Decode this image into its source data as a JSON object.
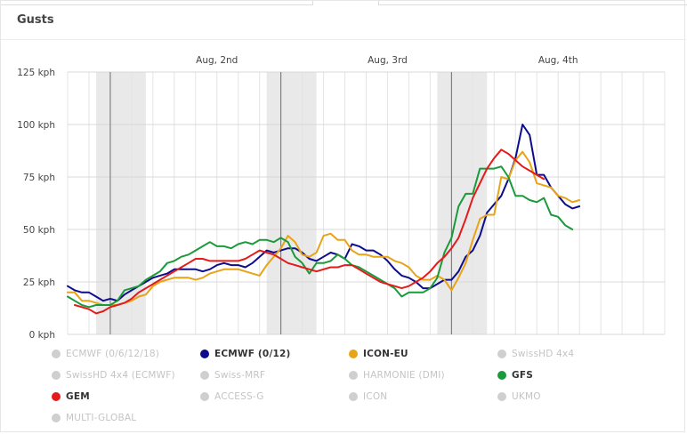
{
  "panel": {
    "title": "Gusts"
  },
  "chart_data": {
    "type": "line",
    "y_unit": "kph",
    "ylim": [
      0,
      125
    ],
    "yticks": [
      0,
      25,
      50,
      75,
      100,
      125
    ],
    "ytick_labels": [
      "0 kph",
      "25 kph",
      "50 kph",
      "75 kph",
      "100 kph",
      "125 kph"
    ],
    "x_range_hours": [
      0,
      84
    ],
    "date_labels": [
      {
        "label": "Aug, 2nd",
        "hour": 21
      },
      {
        "label": "Aug, 3rd",
        "hour": 45
      },
      {
        "label": "Aug, 4th",
        "hour": 69
      }
    ],
    "midnight_hours": [
      6,
      30,
      54
    ],
    "night_bands": [
      [
        4,
        11
      ],
      [
        28,
        35
      ],
      [
        52,
        59
      ]
    ],
    "grid": true,
    "series": [
      {
        "name": "ECMWF (0/12)",
        "color": "#0d0d8c",
        "points": [
          [
            0,
            23
          ],
          [
            1,
            21
          ],
          [
            2,
            20
          ],
          [
            3,
            20
          ],
          [
            4,
            18
          ],
          [
            5,
            16
          ],
          [
            6,
            17
          ],
          [
            7,
            16
          ],
          [
            8,
            19
          ],
          [
            9,
            21
          ],
          [
            10,
            23
          ],
          [
            11,
            25
          ],
          [
            12,
            27
          ],
          [
            13,
            28
          ],
          [
            14,
            29
          ],
          [
            15,
            31
          ],
          [
            16,
            31
          ],
          [
            17,
            31
          ],
          [
            18,
            31
          ],
          [
            19,
            30
          ],
          [
            20,
            31
          ],
          [
            21,
            33
          ],
          [
            22,
            34
          ],
          [
            23,
            33
          ],
          [
            24,
            33
          ],
          [
            25,
            32
          ],
          [
            26,
            34
          ],
          [
            27,
            37
          ],
          [
            28,
            40
          ],
          [
            29,
            39
          ],
          [
            30,
            40
          ],
          [
            31,
            41
          ],
          [
            32,
            41
          ],
          [
            33,
            39
          ],
          [
            34,
            36
          ],
          [
            35,
            35
          ],
          [
            36,
            37
          ],
          [
            37,
            39
          ],
          [
            38,
            38
          ],
          [
            39,
            36
          ],
          [
            40,
            43
          ],
          [
            41,
            42
          ],
          [
            42,
            40
          ],
          [
            43,
            40
          ],
          [
            44,
            38
          ],
          [
            45,
            35
          ],
          [
            46,
            31
          ],
          [
            47,
            28
          ],
          [
            48,
            27
          ],
          [
            49,
            25
          ],
          [
            50,
            22
          ],
          [
            51,
            22
          ],
          [
            52,
            24
          ],
          [
            53,
            26
          ],
          [
            54,
            26
          ],
          [
            55,
            30
          ],
          [
            56,
            37
          ],
          [
            57,
            40
          ],
          [
            58,
            47
          ],
          [
            59,
            58
          ],
          [
            60,
            62
          ],
          [
            61,
            66
          ],
          [
            62,
            74
          ],
          [
            63,
            84
          ],
          [
            64,
            100
          ],
          [
            65,
            95
          ],
          [
            66,
            76
          ],
          [
            67,
            76
          ],
          [
            68,
            70
          ],
          [
            69,
            66
          ],
          [
            70,
            62
          ],
          [
            71,
            60
          ],
          [
            72,
            61
          ]
        ]
      },
      {
        "name": "ICON-EU",
        "color": "#e8a317",
        "points": [
          [
            0,
            20
          ],
          [
            1,
            20
          ],
          [
            2,
            16
          ],
          [
            3,
            16
          ],
          [
            4,
            15
          ],
          [
            5,
            14
          ],
          [
            6,
            14
          ],
          [
            7,
            14
          ],
          [
            8,
            15
          ],
          [
            9,
            16
          ],
          [
            10,
            18
          ],
          [
            11,
            19
          ],
          [
            12,
            23
          ],
          [
            13,
            25
          ],
          [
            14,
            26
          ],
          [
            15,
            27
          ],
          [
            16,
            27
          ],
          [
            17,
            27
          ],
          [
            18,
            26
          ],
          [
            19,
            27
          ],
          [
            20,
            29
          ],
          [
            21,
            30
          ],
          [
            22,
            31
          ],
          [
            23,
            31
          ],
          [
            24,
            31
          ],
          [
            25,
            30
          ],
          [
            26,
            29
          ],
          [
            27,
            28
          ],
          [
            28,
            33
          ],
          [
            29,
            37
          ],
          [
            30,
            41
          ],
          [
            31,
            47
          ],
          [
            32,
            44
          ],
          [
            33,
            38
          ],
          [
            34,
            37
          ],
          [
            35,
            39
          ],
          [
            36,
            47
          ],
          [
            37,
            48
          ],
          [
            38,
            45
          ],
          [
            39,
            45
          ],
          [
            40,
            40
          ],
          [
            41,
            38
          ],
          [
            42,
            38
          ],
          [
            43,
            37
          ],
          [
            44,
            37
          ],
          [
            45,
            37
          ],
          [
            46,
            35
          ],
          [
            47,
            34
          ],
          [
            48,
            32
          ],
          [
            49,
            28
          ],
          [
            50,
            26
          ],
          [
            51,
            26
          ],
          [
            52,
            28
          ],
          [
            53,
            26
          ],
          [
            54,
            21
          ],
          [
            55,
            27
          ],
          [
            56,
            34
          ],
          [
            57,
            45
          ],
          [
            58,
            55
          ],
          [
            59,
            57
          ],
          [
            60,
            57
          ],
          [
            61,
            75
          ],
          [
            62,
            74
          ],
          [
            63,
            83
          ],
          [
            64,
            87
          ],
          [
            65,
            82
          ],
          [
            66,
            72
          ],
          [
            67,
            71
          ],
          [
            68,
            70
          ],
          [
            69,
            66
          ],
          [
            70,
            65
          ],
          [
            71,
            63
          ],
          [
            72,
            64
          ]
        ]
      },
      {
        "name": "GFS",
        "color": "#1a9a3a",
        "points": [
          [
            0,
            18
          ],
          [
            1,
            16
          ],
          [
            2,
            14
          ],
          [
            3,
            13
          ],
          [
            4,
            14
          ],
          [
            5,
            14
          ],
          [
            6,
            14
          ],
          [
            7,
            16
          ],
          [
            8,
            21
          ],
          [
            9,
            22
          ],
          [
            10,
            23
          ],
          [
            11,
            26
          ],
          [
            12,
            28
          ],
          [
            13,
            30
          ],
          [
            14,
            34
          ],
          [
            15,
            35
          ],
          [
            16,
            37
          ],
          [
            17,
            38
          ],
          [
            18,
            40
          ],
          [
            19,
            42
          ],
          [
            20,
            44
          ],
          [
            21,
            42
          ],
          [
            22,
            42
          ],
          [
            23,
            41
          ],
          [
            24,
            43
          ],
          [
            25,
            44
          ],
          [
            26,
            43
          ],
          [
            27,
            45
          ],
          [
            28,
            45
          ],
          [
            29,
            44
          ],
          [
            30,
            46
          ],
          [
            31,
            44
          ],
          [
            32,
            37
          ],
          [
            33,
            34
          ],
          [
            34,
            29
          ],
          [
            35,
            34
          ],
          [
            36,
            34
          ],
          [
            37,
            35
          ],
          [
            38,
            38
          ],
          [
            39,
            36
          ],
          [
            40,
            33
          ],
          [
            41,
            32
          ],
          [
            42,
            30
          ],
          [
            43,
            28
          ],
          [
            44,
            26
          ],
          [
            45,
            24
          ],
          [
            46,
            22
          ],
          [
            47,
            18
          ],
          [
            48,
            20
          ],
          [
            49,
            20
          ],
          [
            50,
            20
          ],
          [
            51,
            22
          ],
          [
            52,
            27
          ],
          [
            53,
            39
          ],
          [
            54,
            46
          ],
          [
            55,
            61
          ],
          [
            56,
            67
          ],
          [
            57,
            67
          ],
          [
            58,
            79
          ],
          [
            59,
            79
          ],
          [
            60,
            79
          ],
          [
            61,
            80
          ],
          [
            62,
            75
          ],
          [
            63,
            66
          ],
          [
            64,
            66
          ],
          [
            65,
            64
          ],
          [
            66,
            63
          ],
          [
            67,
            65
          ],
          [
            68,
            57
          ],
          [
            69,
            56
          ],
          [
            70,
            52
          ],
          [
            71,
            50
          ]
        ]
      },
      {
        "name": "GEM",
        "color": "#e31b1b",
        "points": [
          [
            1,
            14
          ],
          [
            2,
            13
          ],
          [
            3,
            12
          ],
          [
            4,
            10
          ],
          [
            5,
            11
          ],
          [
            6,
            13
          ],
          [
            7,
            14
          ],
          [
            8,
            15
          ],
          [
            9,
            17
          ],
          [
            10,
            20
          ],
          [
            11,
            22
          ],
          [
            12,
            24
          ],
          [
            13,
            26
          ],
          [
            14,
            28
          ],
          [
            15,
            30
          ],
          [
            16,
            32
          ],
          [
            17,
            34
          ],
          [
            18,
            36
          ],
          [
            19,
            36
          ],
          [
            20,
            35
          ],
          [
            21,
            35
          ],
          [
            22,
            35
          ],
          [
            23,
            35
          ],
          [
            24,
            35
          ],
          [
            25,
            36
          ],
          [
            26,
            38
          ],
          [
            27,
            40
          ],
          [
            28,
            39
          ],
          [
            29,
            38
          ],
          [
            30,
            36
          ],
          [
            31,
            34
          ],
          [
            32,
            33
          ],
          [
            33,
            32
          ],
          [
            34,
            31
          ],
          [
            35,
            30
          ],
          [
            36,
            31
          ],
          [
            37,
            32
          ],
          [
            38,
            32
          ],
          [
            39,
            33
          ],
          [
            40,
            33
          ],
          [
            41,
            31
          ],
          [
            42,
            29
          ],
          [
            43,
            27
          ],
          [
            44,
            25
          ],
          [
            45,
            24
          ],
          [
            46,
            23
          ],
          [
            47,
            22
          ],
          [
            48,
            23
          ],
          [
            49,
            25
          ],
          [
            50,
            27
          ],
          [
            51,
            30
          ],
          [
            52,
            34
          ],
          [
            53,
            37
          ],
          [
            54,
            41
          ],
          [
            55,
            46
          ],
          [
            56,
            55
          ],
          [
            57,
            65
          ],
          [
            58,
            72
          ],
          [
            59,
            79
          ],
          [
            60,
            84
          ],
          [
            61,
            88
          ],
          [
            62,
            86
          ],
          [
            63,
            83
          ],
          [
            64,
            80
          ],
          [
            65,
            78
          ],
          [
            66,
            76
          ],
          [
            67,
            74
          ]
        ]
      }
    ]
  },
  "legend": [
    {
      "label": "ECMWF (0/6/12/18)",
      "color": "#cfcfcf",
      "active": false
    },
    {
      "label": "ECMWF (0/12)",
      "color": "#0d0d8c",
      "active": true
    },
    {
      "label": "ICON-EU",
      "color": "#e8a317",
      "active": true
    },
    {
      "label": "SwissHD 4x4",
      "color": "#cfcfcf",
      "active": false
    },
    {
      "label": "SwissHD 4x4 (ECMWF)",
      "color": "#cfcfcf",
      "active": false
    },
    {
      "label": "Swiss-MRF",
      "color": "#cfcfcf",
      "active": false
    },
    {
      "label": "HARMONIE (DMI)",
      "color": "#cfcfcf",
      "active": false
    },
    {
      "label": "GFS",
      "color": "#1a9a3a",
      "active": true
    },
    {
      "label": "GEM",
      "color": "#e31b1b",
      "active": true
    },
    {
      "label": "ACCESS-G",
      "color": "#cfcfcf",
      "active": false
    },
    {
      "label": "ICON",
      "color": "#cfcfcf",
      "active": false
    },
    {
      "label": "UKMO",
      "color": "#cfcfcf",
      "active": false
    },
    {
      "label": "MULTI-GLOBAL",
      "color": "#cfcfcf",
      "active": false
    }
  ]
}
